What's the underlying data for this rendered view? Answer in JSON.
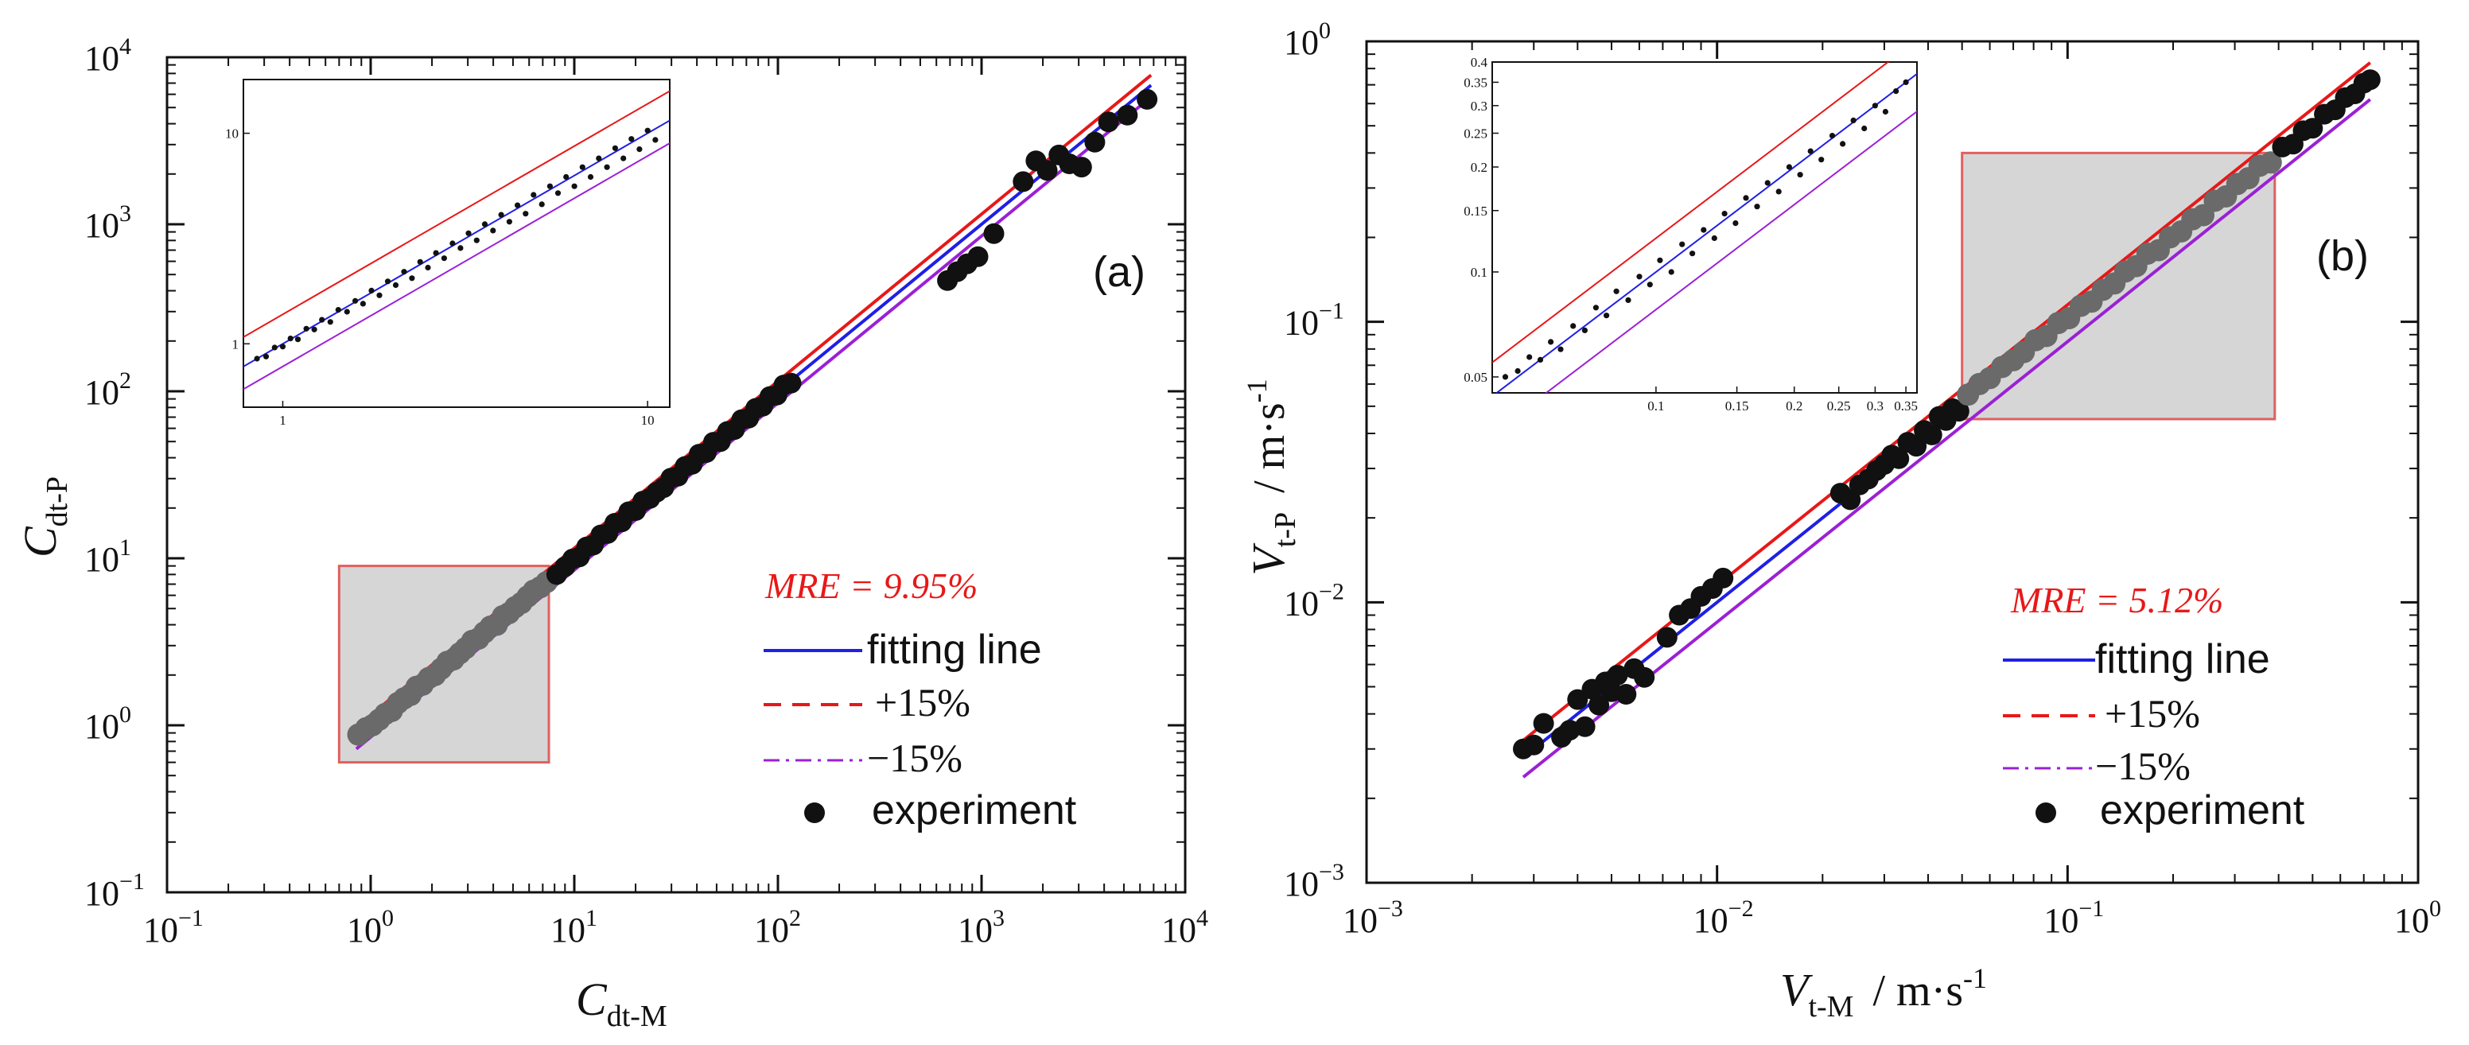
{
  "figure": {
    "panel_a_label": "(a)",
    "panel_b_label": "(b)"
  },
  "legend": {
    "fit": "fitting line",
    "plus": "+15%",
    "minus": "−15%",
    "experiment": "experiment"
  },
  "colors": {
    "fit": "#1f1fe6",
    "plus": "#e81818",
    "minus": "#9b20d6",
    "experiment": "#111111",
    "inset_frame": "#e06060",
    "highlight": "#bdbdbd",
    "main_scatter_zoomed": "#6a6a6a"
  },
  "chart_data": [
    {
      "type": "scatter",
      "id": "a",
      "panel_label": "(a)",
      "title": "",
      "xlabel": {
        "base": "C",
        "sub": "dt-M"
      },
      "ylabel": {
        "base": "C",
        "sub": "dt-P"
      },
      "xscale": "log",
      "yscale": "log",
      "xlim": [
        0.1,
        10000
      ],
      "ylim": [
        0.1,
        10000
      ],
      "tick_exponents": [
        -1,
        0,
        1,
        2,
        3,
        4
      ],
      "mre_label": "MRE = 9.95%",
      "legend_position": "lower-right",
      "fit_slope": 1.0,
      "fit_range": [
        0.85,
        6800
      ],
      "highlight_box": {
        "x": [
          0.7,
          7.5
        ],
        "y": [
          0.6,
          9
        ]
      },
      "series": [
        {
          "name": "experiment",
          "x": [
            0.87,
            0.95,
            1.02,
            1.1,
            1.18,
            1.27,
            1.36,
            1.46,
            1.57,
            1.68,
            1.8,
            1.93,
            2.07,
            2.22,
            2.38,
            2.55,
            2.74,
            2.93,
            3.15,
            3.38,
            3.62,
            3.88,
            4.16,
            4.46,
            4.78,
            5.13,
            5.5,
            5.9,
            6.32,
            6.8,
            7.3,
            8.2,
            9.0,
            9.8,
            10.6,
            11.5,
            12.4,
            13.5,
            14.6,
            15.8,
            17.1,
            18.5,
            20.0,
            21.7,
            23.5,
            25.4,
            27.5,
            29.8,
            32.3,
            35.0,
            38.0,
            41.0,
            44.5,
            48.2,
            52.2,
            56.5,
            61.2,
            66.3,
            71.8,
            77.8,
            84.3,
            91.3,
            98.9,
            107,
            116,
            680,
            760,
            850,
            960,
            1150,
            1600,
            1850,
            2100,
            2400,
            2700,
            3100,
            3600,
            4200,
            5200,
            6500
          ],
          "y": [
            0.88,
            0.96,
            1.0,
            1.08,
            1.17,
            1.22,
            1.36,
            1.45,
            1.52,
            1.7,
            1.75,
            1.92,
            2.0,
            2.18,
            2.4,
            2.48,
            2.7,
            2.9,
            3.2,
            3.3,
            3.6,
            3.9,
            4.0,
            4.5,
            4.7,
            5.1,
            5.4,
            5.9,
            6.4,
            6.7,
            7.2,
            8.0,
            8.9,
            9.9,
            10.2,
            11.7,
            12.0,
            13.8,
            14.1,
            16.2,
            16.5,
            19.0,
            19.3,
            22.0,
            22.8,
            24.9,
            26.5,
            30.2,
            31.0,
            35.5,
            36.6,
            42.0,
            43.0,
            49.5,
            50.0,
            57.5,
            59.0,
            67.5,
            69.0,
            79.0,
            81.5,
            93.0,
            95.0,
            109,
            112,
            460,
            520,
            580,
            640,
            880,
            1800,
            2400,
            2100,
            2600,
            2300,
            2200,
            3100,
            4100,
            4500,
            5600
          ]
        }
      ],
      "inset": {
        "xlim": [
          0.78,
          11.5
        ],
        "ylim": [
          0.5,
          18
        ],
        "x_ticks": [
          1,
          10
        ],
        "y_ticks": [
          1,
          10
        ],
        "x": [
          0.85,
          0.9,
          0.95,
          1.0,
          1.05,
          1.1,
          1.16,
          1.22,
          1.28,
          1.35,
          1.42,
          1.5,
          1.58,
          1.66,
          1.75,
          1.84,
          1.94,
          2.04,
          2.15,
          2.26,
          2.38,
          2.5,
          2.63,
          2.77,
          2.92,
          3.07,
          3.23,
          3.4,
          3.58,
          3.77,
          3.97,
          4.18,
          4.4,
          4.63,
          4.87,
          5.13,
          5.4,
          5.68,
          5.98,
          6.3,
          6.63,
          6.98,
          7.35,
          7.74,
          8.15,
          8.58,
          9.03,
          9.5,
          10.0,
          10.5
        ],
        "y": [
          0.85,
          0.87,
          0.96,
          0.97,
          1.06,
          1.05,
          1.18,
          1.17,
          1.3,
          1.27,
          1.45,
          1.42,
          1.6,
          1.55,
          1.79,
          1.7,
          1.98,
          1.9,
          2.2,
          2.05,
          2.45,
          2.3,
          2.7,
          2.55,
          3.0,
          2.85,
          3.35,
          3.1,
          3.7,
          3.45,
          4.1,
          3.8,
          4.55,
          4.15,
          5.1,
          4.6,
          5.6,
          5.2,
          6.2,
          5.6,
          6.9,
          6.2,
          7.6,
          6.9,
          8.5,
          7.6,
          9.4,
          8.4,
          10.3,
          9.3
        ]
      }
    },
    {
      "type": "scatter",
      "id": "b",
      "panel_label": "(b)",
      "title": "",
      "xlabel": {
        "base": "V",
        "sub": "t-M",
        "unit": "/ m·s",
        "unit_sup": "-1"
      },
      "ylabel": {
        "base": "V",
        "sub": "t-P",
        "unit": "/ m·s",
        "unit_sup": "-1"
      },
      "xscale": "log",
      "yscale": "log",
      "xlim": [
        0.001,
        1
      ],
      "ylim": [
        0.001,
        1
      ],
      "tick_exponents": [
        -3,
        -2,
        -1,
        0
      ],
      "mre_label": "MRE = 5.12%",
      "legend_position": "lower-right",
      "fit_slope": 1.0,
      "fit_range": [
        0.0028,
        0.73
      ],
      "highlight_box": {
        "x": [
          0.05,
          0.39
        ],
        "y": [
          0.045,
          0.4
        ]
      },
      "series": [
        {
          "name": "experiment",
          "x": [
            0.0028,
            0.003,
            0.0032,
            0.0036,
            0.0038,
            0.004,
            0.0042,
            0.0044,
            0.0046,
            0.0048,
            0.005,
            0.0052,
            0.0055,
            0.0058,
            0.0062,
            0.0072,
            0.0078,
            0.0084,
            0.009,
            0.0097,
            0.0104,
            0.0225,
            0.024,
            0.0255,
            0.027,
            0.0285,
            0.03,
            0.0315,
            0.033,
            0.035,
            0.037,
            0.039,
            0.041,
            0.043,
            0.045,
            0.047,
            0.049,
            0.052,
            0.056,
            0.06,
            0.065,
            0.07,
            0.075,
            0.081,
            0.087,
            0.094,
            0.101,
            0.109,
            0.117,
            0.126,
            0.136,
            0.146,
            0.157,
            0.169,
            0.182,
            0.196,
            0.211,
            0.227,
            0.244,
            0.263,
            0.283,
            0.305,
            0.328,
            0.353,
            0.38,
            0.41,
            0.44,
            0.47,
            0.5,
            0.54,
            0.58,
            0.62,
            0.66,
            0.7,
            0.73
          ],
          "y": [
            0.003,
            0.0031,
            0.0037,
            0.0033,
            0.0035,
            0.0045,
            0.0036,
            0.0049,
            0.0043,
            0.0052,
            0.0048,
            0.0055,
            0.0047,
            0.0058,
            0.0054,
            0.0075,
            0.009,
            0.0095,
            0.0105,
            0.0112,
            0.0122,
            0.0245,
            0.0232,
            0.0262,
            0.0275,
            0.0295,
            0.031,
            0.0335,
            0.0325,
            0.0372,
            0.036,
            0.041,
            0.0395,
            0.046,
            0.0445,
            0.049,
            0.048,
            0.055,
            0.06,
            0.063,
            0.069,
            0.073,
            0.078,
            0.086,
            0.089,
            0.099,
            0.103,
            0.114,
            0.118,
            0.13,
            0.137,
            0.151,
            0.158,
            0.175,
            0.18,
            0.2,
            0.21,
            0.232,
            0.24,
            0.27,
            0.28,
            0.31,
            0.325,
            0.36,
            0.37,
            0.42,
            0.43,
            0.48,
            0.49,
            0.55,
            0.57,
            0.63,
            0.65,
            0.71,
            0.73
          ]
        }
      ],
      "inset": {
        "xlim": [
          0.044,
          0.37
        ],
        "ylim": [
          0.045,
          0.4
        ],
        "x_ticks": [
          0.1,
          0.15,
          0.2,
          0.25,
          0.3,
          0.35
        ],
        "x_tick_labels": [
          "0.1",
          "0.15",
          "0.2",
          "0.25",
          "0.3",
          "0.35"
        ],
        "y_ticks": [
          0.05,
          0.1,
          0.15,
          0.2,
          0.25,
          0.3,
          0.35,
          0.4
        ],
        "y_tick_labels": [
          "0.05",
          "0.1",
          "0.15",
          "0.2",
          "0.25",
          "0.3",
          "0.35",
          "0.4"
        ],
        "x": [
          0.047,
          0.05,
          0.053,
          0.056,
          0.059,
          0.062,
          0.066,
          0.07,
          0.074,
          0.078,
          0.082,
          0.087,
          0.092,
          0.097,
          0.102,
          0.108,
          0.114,
          0.12,
          0.127,
          0.134,
          0.141,
          0.149,
          0.157,
          0.166,
          0.175,
          0.185,
          0.195,
          0.206,
          0.217,
          0.229,
          0.242,
          0.255,
          0.269,
          0.284,
          0.3,
          0.316,
          0.333,
          0.35
        ],
        "y": [
          0.05,
          0.052,
          0.057,
          0.056,
          0.063,
          0.06,
          0.07,
          0.068,
          0.079,
          0.075,
          0.088,
          0.083,
          0.097,
          0.092,
          0.108,
          0.1,
          0.12,
          0.113,
          0.132,
          0.125,
          0.147,
          0.138,
          0.163,
          0.154,
          0.18,
          0.17,
          0.2,
          0.19,
          0.222,
          0.21,
          0.246,
          0.233,
          0.272,
          0.258,
          0.3,
          0.288,
          0.33,
          0.35
        ]
      }
    }
  ]
}
